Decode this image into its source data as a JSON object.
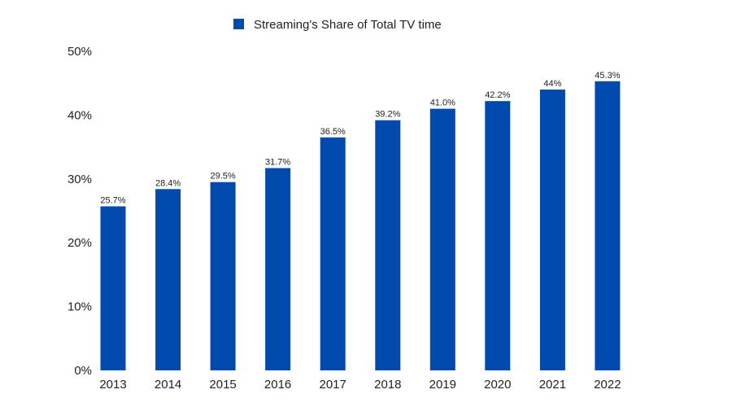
{
  "chart_data": {
    "type": "bar",
    "categories": [
      "2013",
      "2014",
      "2015",
      "2016",
      "2017",
      "2018",
      "2019",
      "2020",
      "2021",
      "2022"
    ],
    "series": [
      {
        "name": "Streaming's Share of  Total TV time",
        "values": [
          25.7,
          28.4,
          29.5,
          31.7,
          36.5,
          39.2,
          41.0,
          42.2,
          44,
          45.3
        ],
        "labels": [
          "25.7%",
          "28.4%",
          "29.5%",
          "31.7%",
          "36.5%",
          "39.2%",
          "41.0%",
          "42.2%",
          "44%",
          "45.3%"
        ],
        "color": "#004AAD"
      }
    ],
    "title": "",
    "xlabel": "",
    "ylabel": "",
    "ylim": [
      0,
      50
    ],
    "yticks": [
      0,
      10,
      20,
      30,
      40,
      50
    ],
    "ytick_labels": [
      "0%",
      "10%",
      "20%",
      "30%",
      "40%",
      "50%"
    ],
    "grid": false,
    "legend_position": "top-center"
  }
}
